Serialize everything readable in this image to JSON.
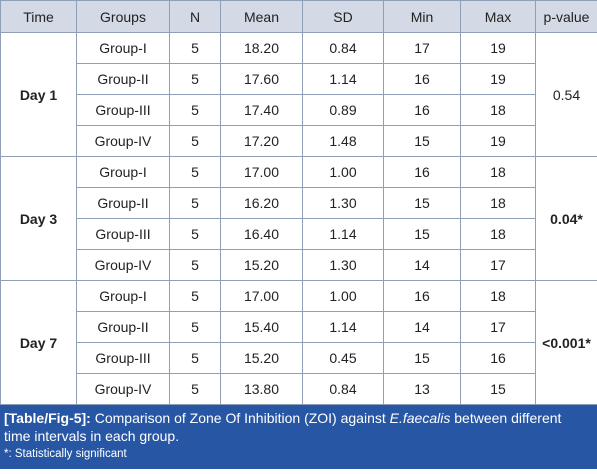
{
  "columns": [
    "Time",
    "Groups",
    "N",
    "Mean",
    "SD",
    "Min",
    "Max",
    "p-value"
  ],
  "blocks": [
    {
      "time": "Day 1",
      "p_value": "0.54",
      "p_bold": false,
      "rows": [
        {
          "group": "Group-I",
          "n": "5",
          "mean": "18.20",
          "sd": "0.84",
          "min": "17",
          "max": "19"
        },
        {
          "group": "Group-II",
          "n": "5",
          "mean": "17.60",
          "sd": "1.14",
          "min": "16",
          "max": "19"
        },
        {
          "group": "Group-III",
          "n": "5",
          "mean": "17.40",
          "sd": "0.89",
          "min": "16",
          "max": "18"
        },
        {
          "group": "Group-IV",
          "n": "5",
          "mean": "17.20",
          "sd": "1.48",
          "min": "15",
          "max": "19"
        }
      ]
    },
    {
      "time": "Day 3",
      "p_value": "0.04*",
      "p_bold": true,
      "rows": [
        {
          "group": "Group-I",
          "n": "5",
          "mean": "17.00",
          "sd": "1.00",
          "min": "16",
          "max": "18"
        },
        {
          "group": "Group-II",
          "n": "5",
          "mean": "16.20",
          "sd": "1.30",
          "min": "15",
          "max": "18"
        },
        {
          "group": "Group-III",
          "n": "5",
          "mean": "16.40",
          "sd": "1.14",
          "min": "15",
          "max": "18"
        },
        {
          "group": "Group-IV",
          "n": "5",
          "mean": "15.20",
          "sd": "1.30",
          "min": "14",
          "max": "17"
        }
      ]
    },
    {
      "time": "Day 7",
      "p_value": "<0.001*",
      "p_bold": true,
      "rows": [
        {
          "group": "Group-I",
          "n": "5",
          "mean": "17.00",
          "sd": "1.00",
          "min": "16",
          "max": "18"
        },
        {
          "group": "Group-II",
          "n": "5",
          "mean": "15.40",
          "sd": "1.14",
          "min": "14",
          "max": "17"
        },
        {
          "group": "Group-III",
          "n": "5",
          "mean": "15.20",
          "sd": "0.45",
          "min": "15",
          "max": "16"
        },
        {
          "group": "Group-IV",
          "n": "5",
          "mean": "13.80",
          "sd": "0.84",
          "min": "13",
          "max": "15"
        }
      ]
    }
  ],
  "caption": {
    "tag": "[Table/Fig-5]:",
    "text_before": " Comparison of Zone Of Inhibition (ZOI) against ",
    "italic": "E.faecalis",
    "text_after": " between different time intervals in each group.",
    "note": "*: Statistically significant"
  },
  "colors": {
    "header_bg": "#d3dae5",
    "border": "#8fa0b6",
    "caption_bg": "#2757a4",
    "caption_text": "#ffffff"
  }
}
